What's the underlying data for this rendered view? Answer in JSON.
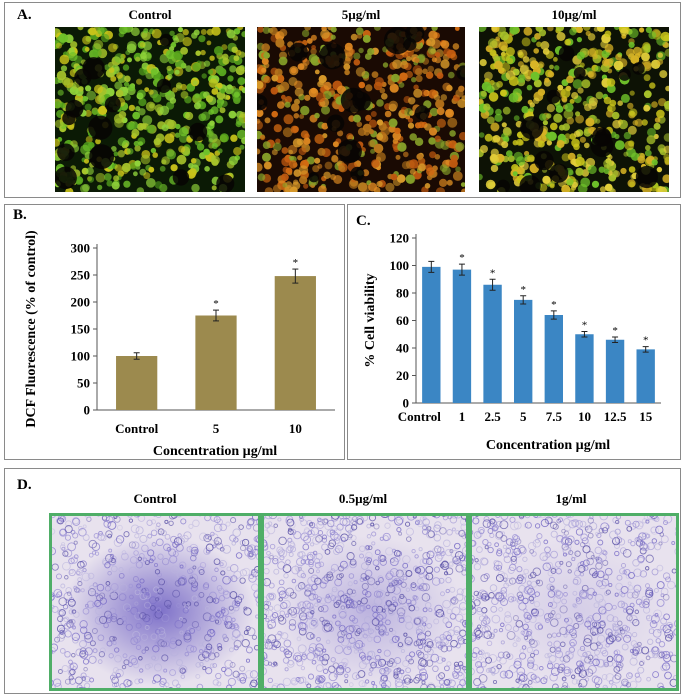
{
  "panel_a": {
    "label": "A.",
    "images": [
      {
        "caption": "Control"
      },
      {
        "caption": "5µg/ml"
      },
      {
        "caption": "10µg/ml"
      }
    ],
    "colors": {
      "green": "#6fc22a",
      "orange": "#d26a12",
      "yellow": "#c9c41a"
    }
  },
  "panel_b": {
    "label": "B."
  },
  "panel_c": {
    "label": "C."
  },
  "panel_d": {
    "label": "D.",
    "images": [
      {
        "caption": "Control"
      },
      {
        "caption": "0.5µg/ml"
      },
      {
        "caption": "1g/ml"
      }
    ],
    "colors": {
      "border": "#4fae67",
      "stain": "#6a5cc2",
      "background": "#e8e2ee"
    }
  },
  "chart_data": [
    {
      "type": "bar",
      "categories": [
        "Control",
        "5",
        "10"
      ],
      "values": [
        100,
        175,
        248
      ],
      "errors": [
        6,
        10,
        13
      ],
      "significance": [
        "",
        "*",
        "*"
      ],
      "ylabel": "DCF Fluorescence (% of control)",
      "xlabel": "Concentration µg/ml",
      "ylim": [
        0,
        300
      ],
      "yticks": [
        0,
        50,
        100,
        150,
        200,
        250,
        300
      ],
      "bar_color": "#9c8a4e",
      "grid": false
    },
    {
      "type": "bar",
      "categories": [
        "Control",
        "1",
        "2.5",
        "5",
        "7.5",
        "10",
        "12.5",
        "15"
      ],
      "values": [
        99,
        97,
        86,
        75,
        64,
        50,
        46,
        39
      ],
      "errors": [
        4,
        4,
        4,
        3,
        3,
        2,
        2,
        2
      ],
      "significance": [
        "",
        "*",
        "*",
        "*",
        "*",
        "*",
        "*",
        "*"
      ],
      "ylabel": "% Cell viability",
      "xlabel": "Concentration µg/ml",
      "ylim": [
        0,
        120
      ],
      "yticks": [
        0,
        20,
        40,
        60,
        80,
        100,
        120
      ],
      "bar_color": "#3b86c4",
      "grid": false
    }
  ]
}
